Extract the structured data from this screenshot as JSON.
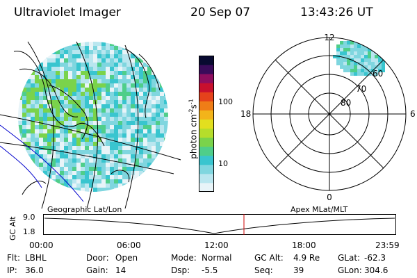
{
  "header": {
    "title": "Ultraviolet Imager",
    "date": "20 Sep 07",
    "time": "13:43:26 UT"
  },
  "colorbar": {
    "unit": "photon cm",
    "unit_exp1": "-2",
    "unit_s": "s",
    "unit_exp2": "-1",
    "ticks": [
      {
        "label": "100",
        "value": 100
      },
      {
        "label": "10",
        "value": 10
      }
    ],
    "colors": [
      "#e8f4f8",
      "#b9e6ef",
      "#7fd6df",
      "#39c5cf",
      "#4fce8a",
      "#7ad34b",
      "#b6dd2b",
      "#e2df1f",
      "#f3b41a",
      "#ef7d17",
      "#e5421b",
      "#c8102e",
      "#8e0e5f",
      "#3a0b5a",
      "#080a30"
    ]
  },
  "polar": {
    "lat_labels": [
      "60",
      "70",
      "80"
    ],
    "mlt_labels": {
      "top": "12",
      "right": "6",
      "bottom": "0",
      "left": "18"
    }
  },
  "altitude_plot": {
    "axis_label": "GC Alt",
    "y_ticks": [
      "9.0",
      "1.8"
    ],
    "x_ticks": [
      "00:00",
      "06:00",
      "12:00",
      "18:00",
      "23:59"
    ],
    "left_caption": "Geographic Lat/Lon",
    "right_caption": "Apex MLat/MLT",
    "marker_color": "#cc0000"
  },
  "status": {
    "row1": [
      {
        "key": "Flt:",
        "value": "LBHL"
      },
      {
        "key": "Door:",
        "value": "Open"
      },
      {
        "key": "Mode:",
        "value": "Normal"
      },
      {
        "key": "GC Alt:",
        "value": "4.9 Re"
      },
      {
        "key": "GLat:",
        "value": "-62.3"
      }
    ],
    "row2": [
      {
        "key": "IP:",
        "value": "36.0"
      },
      {
        "key": "Gain:",
        "value": "14"
      },
      {
        "key": "Dsp:",
        "value": "-5.5"
      },
      {
        "key": "Seq:",
        "value": "39"
      },
      {
        "key": "GLon:",
        "value": "304.6"
      }
    ]
  }
}
